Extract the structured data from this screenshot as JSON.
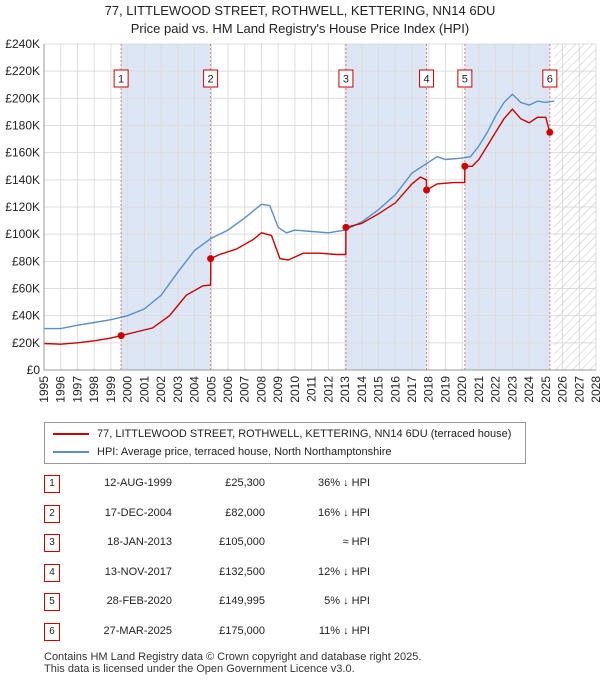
{
  "header": {
    "title_line1": "77, LITTLEWOOD STREET, ROTHWELL, KETTERING, NN14 6DU",
    "title_line2": "Price paid vs. HM Land Registry's House Price Index (HPI)"
  },
  "legend": {
    "red_label": "77, LITTLEWOOD STREET, ROTHWELL, KETTERING, NN14 6DU (terraced house)",
    "blue_label": "HPI: Average price, terraced house, North Northamptonshire"
  },
  "transactions": [
    {
      "num": "1",
      "date": "12-AUG-1999",
      "price": "£25,300",
      "relation": "36% ↓ HPI"
    },
    {
      "num": "2",
      "date": "17-DEC-2004",
      "price": "£82,000",
      "relation": "16% ↓ HPI"
    },
    {
      "num": "3",
      "date": "18-JAN-2013",
      "price": "£105,000",
      "relation": "≈ HPI"
    },
    {
      "num": "4",
      "date": "13-NOV-2017",
      "price": "£132,500",
      "relation": "12% ↓ HPI"
    },
    {
      "num": "5",
      "date": "28-FEB-2020",
      "price": "£149,995",
      "relation": "5% ↓ HPI"
    },
    {
      "num": "6",
      "date": "27-MAR-2025",
      "price": "£175,000",
      "relation": "11% ↓ HPI"
    }
  ],
  "footer": {
    "line1": "Contains HM Land Registry data © Crown copyright and database right 2025.",
    "line2": "This data is licensed under the Open Government Licence v3.0."
  },
  "colors": {
    "property_line": "#cc0000",
    "hpi_line": "#5b8fc9",
    "shade": "#dde6f4",
    "marker_line": "#e08080",
    "grid": "#dddddd"
  },
  "chart_data": {
    "type": "line",
    "xlim": [
      1995,
      2028
    ],
    "ylim": [
      0,
      240000
    ],
    "x_ticks": [
      1995,
      1996,
      1997,
      1998,
      1999,
      2000,
      2001,
      2002,
      2003,
      2004,
      2005,
      2006,
      2007,
      2008,
      2009,
      2010,
      2011,
      2012,
      2013,
      2014,
      2015,
      2016,
      2017,
      2018,
      2019,
      2020,
      2021,
      2022,
      2023,
      2024,
      2025,
      2026,
      2027,
      2028
    ],
    "y_ticks": [
      0,
      20000,
      40000,
      60000,
      80000,
      100000,
      120000,
      140000,
      160000,
      180000,
      200000,
      220000,
      240000
    ],
    "y_tick_labels": [
      "£0",
      "£20K",
      "£40K",
      "£60K",
      "£80K",
      "£100K",
      "£120K",
      "£140K",
      "£160K",
      "£180K",
      "£200K",
      "£220K",
      "£240K"
    ],
    "shaded_periods": [
      [
        1999.61,
        2004.96
      ],
      [
        2013.05,
        2017.87
      ],
      [
        2020.16,
        2025.24
      ]
    ],
    "hatched_from": 2025.5,
    "series": [
      {
        "name": "77, LITTLEWOOD STREET, ROTHWELL, KETTERING, NN14 6DU (terraced house)",
        "points": [
          [
            1995.0,
            19500
          ],
          [
            1996.0,
            19000
          ],
          [
            1997.0,
            20000
          ],
          [
            1998.0,
            21500
          ],
          [
            1999.0,
            23500
          ],
          [
            1999.61,
            25300
          ],
          [
            2000.5,
            28000
          ],
          [
            2001.5,
            31000
          ],
          [
            2002.5,
            40000
          ],
          [
            2003.5,
            55000
          ],
          [
            2004.5,
            62000
          ],
          [
            2004.96,
            62500
          ],
          [
            2004.97,
            82000
          ],
          [
            2005.5,
            85000
          ],
          [
            2006.5,
            89000
          ],
          [
            2007.5,
            96000
          ],
          [
            2008.0,
            101000
          ],
          [
            2008.6,
            99000
          ],
          [
            2009.1,
            82000
          ],
          [
            2009.6,
            81000
          ],
          [
            2010.5,
            86000
          ],
          [
            2011.5,
            86000
          ],
          [
            2012.5,
            85000
          ],
          [
            2013.04,
            85000
          ],
          [
            2013.05,
            105000
          ],
          [
            2014.0,
            108000
          ],
          [
            2015.0,
            115000
          ],
          [
            2016.0,
            123000
          ],
          [
            2017.0,
            137000
          ],
          [
            2017.5,
            142000
          ],
          [
            2017.86,
            140000
          ],
          [
            2017.87,
            132500
          ],
          [
            2018.5,
            137000
          ],
          [
            2019.5,
            138000
          ],
          [
            2020.15,
            138000
          ],
          [
            2020.16,
            149995
          ],
          [
            2020.6,
            150000
          ],
          [
            2021.0,
            155000
          ],
          [
            2021.5,
            165000
          ],
          [
            2022.0,
            175000
          ],
          [
            2022.5,
            185000
          ],
          [
            2023.0,
            192000
          ],
          [
            2023.5,
            185000
          ],
          [
            2024.0,
            182000
          ],
          [
            2024.5,
            186000
          ],
          [
            2025.0,
            186000
          ],
          [
            2025.24,
            175000
          ],
          [
            2025.4,
            176000
          ]
        ]
      },
      {
        "name": "HPI: Average price, terraced house, North Northamptonshire",
        "points": [
          [
            1995.0,
            30500
          ],
          [
            1996.0,
            30500
          ],
          [
            1997.0,
            33000
          ],
          [
            1998.0,
            35000
          ],
          [
            1999.0,
            37000
          ],
          [
            2000.0,
            40000
          ],
          [
            2001.0,
            45000
          ],
          [
            2002.0,
            55000
          ],
          [
            2003.0,
            72000
          ],
          [
            2004.0,
            88000
          ],
          [
            2005.0,
            97000
          ],
          [
            2006.0,
            103000
          ],
          [
            2007.0,
            112000
          ],
          [
            2008.0,
            122000
          ],
          [
            2008.5,
            121000
          ],
          [
            2009.0,
            105000
          ],
          [
            2009.5,
            101000
          ],
          [
            2010.0,
            103000
          ],
          [
            2011.0,
            102000
          ],
          [
            2012.0,
            101000
          ],
          [
            2013.0,
            103000
          ],
          [
            2014.0,
            109000
          ],
          [
            2015.0,
            118000
          ],
          [
            2016.0,
            129000
          ],
          [
            2017.0,
            145000
          ],
          [
            2018.0,
            153000
          ],
          [
            2018.5,
            157000
          ],
          [
            2019.0,
            155000
          ],
          [
            2020.0,
            156000
          ],
          [
            2020.5,
            157000
          ],
          [
            2021.0,
            165000
          ],
          [
            2021.5,
            175000
          ],
          [
            2022.0,
            187000
          ],
          [
            2022.5,
            197000
          ],
          [
            2023.0,
            203000
          ],
          [
            2023.5,
            197000
          ],
          [
            2024.0,
            195000
          ],
          [
            2024.5,
            198000
          ],
          [
            2025.0,
            197000
          ],
          [
            2025.5,
            198000
          ]
        ]
      }
    ],
    "sales": [
      {
        "label": "1",
        "x": 1999.61,
        "value": 25300
      },
      {
        "label": "2",
        "x": 2004.96,
        "value": 82000
      },
      {
        "label": "3",
        "x": 2013.05,
        "value": 105000
      },
      {
        "label": "4",
        "x": 2017.87,
        "value": 132500
      },
      {
        "label": "5",
        "x": 2020.16,
        "value": 149995
      },
      {
        "label": "6",
        "x": 2025.24,
        "value": 175000
      }
    ]
  }
}
